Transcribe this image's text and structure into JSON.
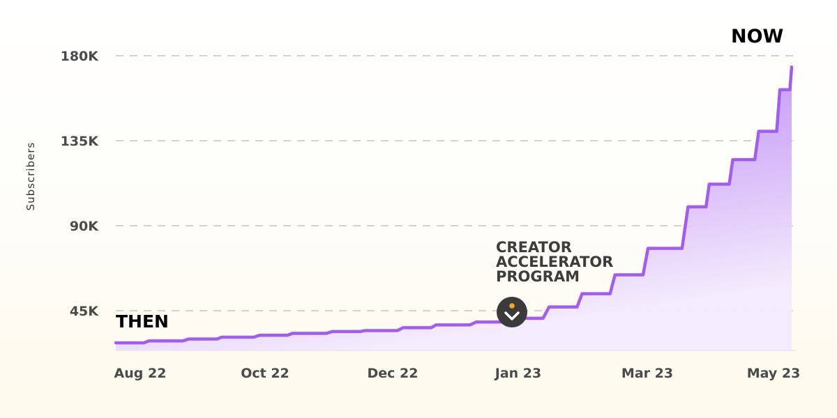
{
  "chart_data": {
    "type": "area",
    "xlabel": "",
    "ylabel": "Subscribers",
    "x_ticks": [
      "Aug 22",
      "Oct 22",
      "Dec 22",
      "Jan 23",
      "Mar 23",
      "May 23"
    ],
    "y_ticks": [
      "45K",
      "90K",
      "135K",
      "180K"
    ],
    "ylim": [
      24000,
      185000
    ],
    "grid": "horizontal dashed",
    "series": [
      {
        "x": [
          "2022-08-01",
          "2022-08-15",
          "2022-09-01",
          "2022-09-15",
          "2022-10-01",
          "2022-10-15",
          "2022-11-01",
          "2022-11-15",
          "2022-12-01",
          "2022-12-15",
          "2023-01-01",
          "2023-01-15",
          "2023-02-01",
          "2023-02-15",
          "2023-03-01",
          "2023-03-15",
          "2023-04-01",
          "2023-04-10",
          "2023-04-20",
          "2023-05-01",
          "2023-05-10",
          "2023-05-15"
        ],
        "values": [
          28000,
          29000,
          30000,
          31000,
          32000,
          33000,
          34000,
          34500,
          36000,
          37500,
          39000,
          41000,
          47000,
          54000,
          64000,
          78000,
          100000,
          112000,
          125000,
          140000,
          162000,
          174000
        ],
        "color": "#a35cf0"
      }
    ],
    "annotations": [
      {
        "text": "THEN",
        "color": "#f5a623"
      },
      {
        "text": "NOW",
        "color": "#5fcf4a"
      },
      {
        "lines": [
          "CREATOR",
          "ACCELERATOR",
          "PROGRAM"
        ],
        "x": "2023-01-10",
        "y": 41000
      }
    ]
  },
  "colors": {
    "line": "#a35cf0",
    "grid": "#c4c4c4",
    "marker_bg": "#3b3b3b",
    "marker_dot": "#f5a623"
  },
  "icons": {
    "marker": "chevron-down-icon"
  }
}
